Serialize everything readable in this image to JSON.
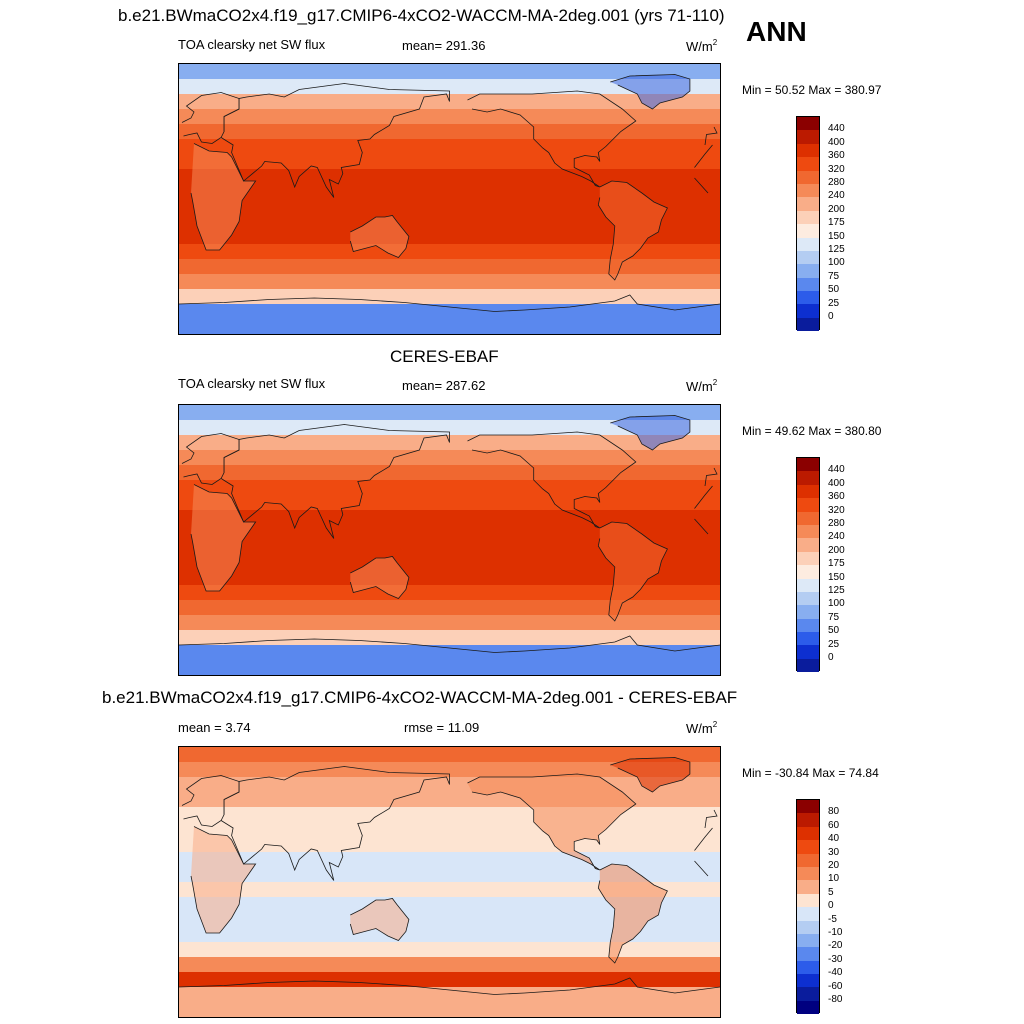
{
  "panels": [
    {
      "title": "b.e21.BWmaCO2x4.f19_g17.CMIP6-4xCO2-WACCM-MA-2deg.001 (yrs 71-110)",
      "left_label": "TOA clearsky net SW flux",
      "center_label": "mean= 291.36",
      "units_base": "W/m",
      "units_sup": "2",
      "minmax": "Min =  50.52 Max = 380.97",
      "field": "abs"
    },
    {
      "title": "CERES-EBAF",
      "left_label": "TOA clearsky net SW flux",
      "center_label": "mean= 287.62",
      "units_base": "W/m",
      "units_sup": "2",
      "minmax": "Min =  49.62 Max = 380.80",
      "field": "abs"
    },
    {
      "title": "b.e21.BWmaCO2x4.f19_g17.CMIP6-4xCO2-WACCM-MA-2deg.001 - CERES-EBAF",
      "left_label": "mean =   3.74",
      "center_label": "rmse =  11.09",
      "units_base": "W/m",
      "units_sup": "2",
      "minmax": "Min = -30.84 Max =  74.84",
      "field": "diff"
    }
  ],
  "season": "ANN",
  "colorbars": {
    "abs": {
      "labels": [
        "440",
        "400",
        "360",
        "320",
        "280",
        "240",
        "200",
        "175",
        "150",
        "125",
        "100",
        "75",
        "50",
        "25",
        "0"
      ],
      "colors": [
        "#8b0000",
        "#bb1a00",
        "#dd3000",
        "#ee4a10",
        "#f06830",
        "#f58a58",
        "#f9ad88",
        "#fcd0b8",
        "#fdece0",
        "#dde9f7",
        "#b4cdf2",
        "#88aef0",
        "#5a88ee",
        "#2c5cea",
        "#0d2fd0",
        "#0a1c9c"
      ]
    },
    "diff": {
      "labels": [
        "80",
        "60",
        "40",
        "30",
        "20",
        "10",
        "5",
        "0",
        "-5",
        "-10",
        "-20",
        "-30",
        "-40",
        "-60",
        "-80"
      ],
      "colors": [
        "#8b0000",
        "#bb1a00",
        "#dd3000",
        "#ee4a10",
        "#f06830",
        "#f58a58",
        "#f9ad88",
        "#fde4d2",
        "#d8e6f8",
        "#b4cdf2",
        "#88aef0",
        "#5a88ee",
        "#2c5cea",
        "#0d2fd0",
        "#0a1c9c",
        "#000080"
      ]
    }
  },
  "chart_data": [
    {
      "type": "heatmap",
      "title": "b.e21.BWmaCO2x4.f19_g17.CMIP6-4xCO2-WACCM-MA-2deg.001 (yrs 71-110)",
      "variable": "TOA clearsky net SW flux",
      "units": "W/m2",
      "mean": 291.36,
      "min": 50.52,
      "max": 380.97,
      "zonal_bands_lat": [
        90,
        80,
        70,
        60,
        50,
        40,
        30,
        20,
        10,
        0,
        -10,
        -20,
        -30,
        -40,
        -50,
        -60,
        -70,
        -90
      ],
      "zonal_band_values": [
        75,
        125,
        200,
        240,
        280,
        320,
        340,
        380,
        380,
        380,
        380,
        360,
        320,
        280,
        240,
        175,
        50
      ],
      "levels": [
        0,
        25,
        50,
        75,
        100,
        125,
        150,
        175,
        200,
        240,
        280,
        320,
        360,
        400,
        440
      ]
    },
    {
      "type": "heatmap",
      "title": "CERES-EBAF",
      "variable": "TOA clearsky net SW flux",
      "units": "W/m2",
      "mean": 287.62,
      "min": 49.62,
      "max": 380.8,
      "zonal_bands_lat": [
        90,
        80,
        70,
        60,
        50,
        40,
        30,
        20,
        10,
        0,
        -10,
        -20,
        -30,
        -40,
        -50,
        -60,
        -70,
        -90
      ],
      "zonal_band_values": [
        75,
        125,
        200,
        240,
        280,
        320,
        340,
        380,
        380,
        380,
        380,
        360,
        320,
        280,
        240,
        175,
        50
      ],
      "levels": [
        0,
        25,
        50,
        75,
        100,
        125,
        150,
        175,
        200,
        240,
        280,
        320,
        360,
        400,
        440
      ]
    },
    {
      "type": "heatmap",
      "title": "b.e21.BWmaCO2x4.f19_g17.CMIP6-4xCO2-WACCM-MA-2deg.001 - CERES-EBAF",
      "units": "W/m2",
      "mean": 3.74,
      "rmse": 11.09,
      "min": -30.84,
      "max": 74.84,
      "zonal_bands_lat": [
        90,
        80,
        70,
        60,
        50,
        40,
        30,
        20,
        10,
        0,
        -10,
        -20,
        -30,
        -40,
        -50,
        -60,
        -70,
        -90
      ],
      "zonal_band_values": [
        20,
        10,
        5,
        5,
        2,
        0,
        0,
        -2,
        -2,
        0,
        -2,
        -2,
        -2,
        0,
        10,
        40,
        5
      ],
      "levels": [
        -80,
        -60,
        -40,
        -30,
        -20,
        -10,
        -5,
        0,
        5,
        10,
        20,
        30,
        40,
        60,
        80
      ]
    }
  ]
}
